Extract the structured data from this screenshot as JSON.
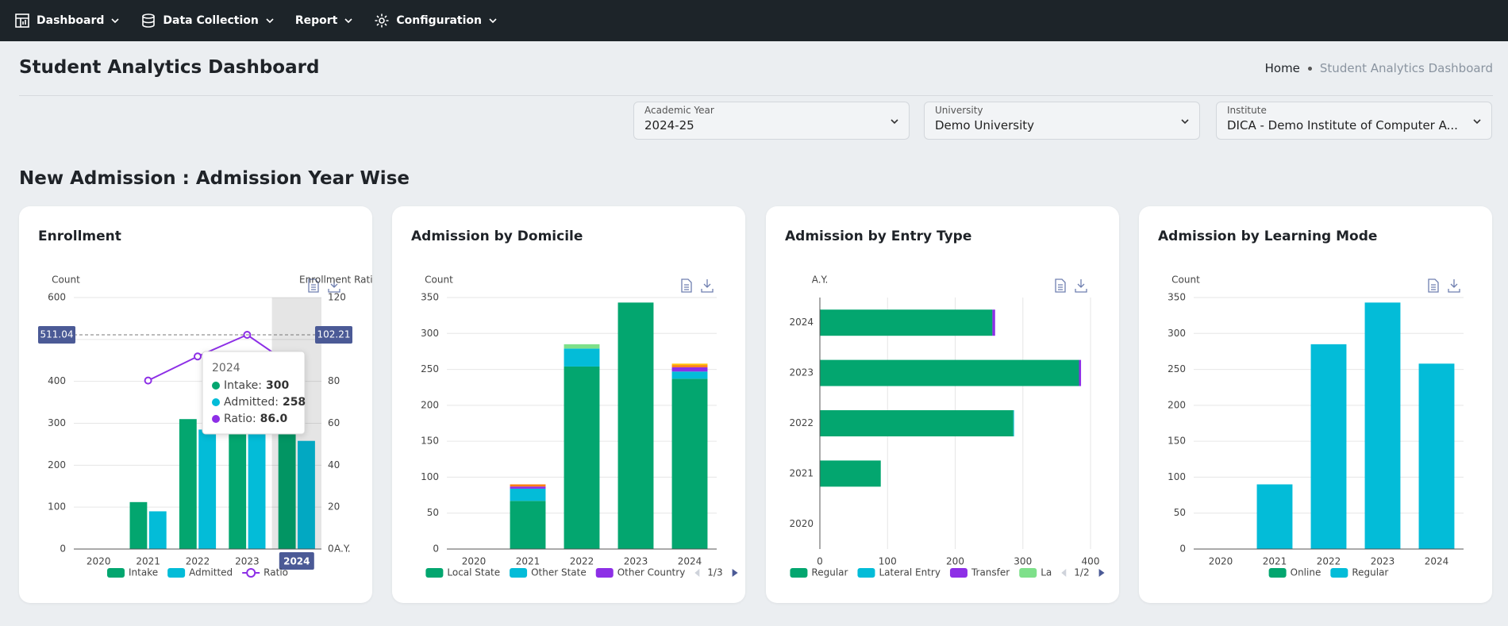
{
  "nav": {
    "items": [
      "Dashboard",
      "Data Collection",
      "Report",
      "Configuration"
    ]
  },
  "header": {
    "title": "Student Analytics Dashboard",
    "breadcrumb": [
      "Home",
      "Student Analytics Dashboard"
    ]
  },
  "filters": [
    {
      "label": "Academic Year",
      "value": "2024-25"
    },
    {
      "label": "University",
      "value": "Demo University"
    },
    {
      "label": "Institute",
      "value": "DICA - Demo Institute of Computer A..."
    }
  ],
  "section_title": "New Admission : Admission Year Wise",
  "chart_data": [
    {
      "type": "bar",
      "title": "Enrollment",
      "y_label": "Count",
      "y2_label": "Enrollment Ratio(",
      "x_label": "A.Y.",
      "categories": [
        "2020",
        "2021",
        "2022",
        "2023",
        "2024"
      ],
      "series": [
        {
          "name": "Intake",
          "color": "#03a66f",
          "values": [
            0,
            112,
            310,
            336,
            300
          ]
        },
        {
          "name": "Admitted",
          "color": "#03bcd8",
          "values": [
            0,
            90,
            285,
            343,
            258
          ]
        },
        {
          "name": "Ratio",
          "type": "line",
          "axis": "y2",
          "color": "#8d2fe6",
          "values": [
            null,
            80.4,
            91.9,
            102.21,
            86
          ]
        }
      ],
      "ylim": [
        0,
        600
      ],
      "yticks": [
        0,
        100,
        200,
        300,
        400,
        500,
        600
      ],
      "y2lim": [
        0,
        120
      ],
      "y2ticks": [
        0,
        20,
        40,
        60,
        80,
        100,
        120
      ],
      "grid": true,
      "hovered_category": "2024",
      "crosshair": {
        "y": 511.04,
        "y2": 102.21
      },
      "tooltip": {
        "title": "2024",
        "items": [
          {
            "name": "Intake:",
            "color": "#03a66f",
            "value": 300
          },
          {
            "name": "Admitted:",
            "color": "#03bcd8",
            "value": 258
          },
          {
            "name": "Ratio:",
            "color": "#8d2fe6",
            "value": {
              "value": 86,
              "label": "86.0"
            }
          }
        ]
      }
    },
    {
      "type": "stacked_bar",
      "title": "Admission by Domicile",
      "y_label": "Count",
      "categories": [
        "2020",
        "2021",
        "2022",
        "2023",
        "2024"
      ],
      "series": [
        {
          "name": "Local State",
          "color": "#03a66f",
          "values": [
            0,
            67,
            254,
            343,
            237
          ]
        },
        {
          "name": "Other State",
          "color": "#03bcd8",
          "values": [
            0,
            17,
            25,
            0,
            10
          ]
        },
        {
          "name": "Other Country",
          "color": "#8d2fe6",
          "values": [
            0,
            3,
            0,
            0,
            6
          ]
        },
        {
          "color": "#fd7e14",
          "values": [
            0,
            3,
            0,
            0,
            3
          ]
        },
        {
          "color": "#7ee08a",
          "values": [
            0,
            0,
            6,
            0,
            0
          ]
        },
        {
          "color": "#ffc107",
          "values": [
            0,
            0,
            0,
            0,
            2
          ]
        }
      ],
      "ylim": [
        0,
        350
      ],
      "yticks": [
        0,
        50,
        100,
        150,
        200,
        250,
        300,
        350
      ],
      "grid": true,
      "legend_page": "1/3"
    },
    {
      "type": "horizontal_stacked_bar",
      "title": "Admission by Entry Type",
      "y_label": "A.Y.",
      "categories": [
        "2020",
        "2021",
        "2022",
        "2023",
        "2024"
      ],
      "series": [
        {
          "name": "Regular",
          "color": "#03a66f",
          "values": [
            0,
            90,
            286,
            383,
            255
          ]
        },
        {
          "name": "Lateral Entry",
          "color": "#03bcd8",
          "values": [
            0,
            0,
            1,
            0,
            0
          ]
        },
        {
          "name": "Transfer",
          "color": "#8d2fe6",
          "values": [
            0,
            0,
            0,
            3,
            4
          ]
        },
        {
          "name": "La",
          "color": "#7ee08a",
          "values": [
            0,
            0,
            0,
            0,
            0
          ]
        }
      ],
      "xlim": [
        0,
        400
      ],
      "xticks": [
        0,
        100,
        200,
        300,
        400
      ],
      "grid": true,
      "legend_page": "1/2"
    },
    {
      "type": "stacked_bar",
      "title": "Admission by Learning Mode",
      "y_label": "Count",
      "categories": [
        "2020",
        "2021",
        "2022",
        "2023",
        "2024"
      ],
      "series": [
        {
          "name": "Online",
          "color": "#03a66f",
          "values": [
            0,
            0,
            0,
            0,
            0
          ]
        },
        {
          "name": "Regular",
          "color": "#03bcd8",
          "values": [
            0,
            90,
            285,
            343,
            258
          ]
        }
      ],
      "ylim": [
        0,
        350
      ],
      "yticks": [
        0,
        50,
        100,
        150,
        200,
        250,
        300,
        350
      ],
      "grid": true
    }
  ]
}
